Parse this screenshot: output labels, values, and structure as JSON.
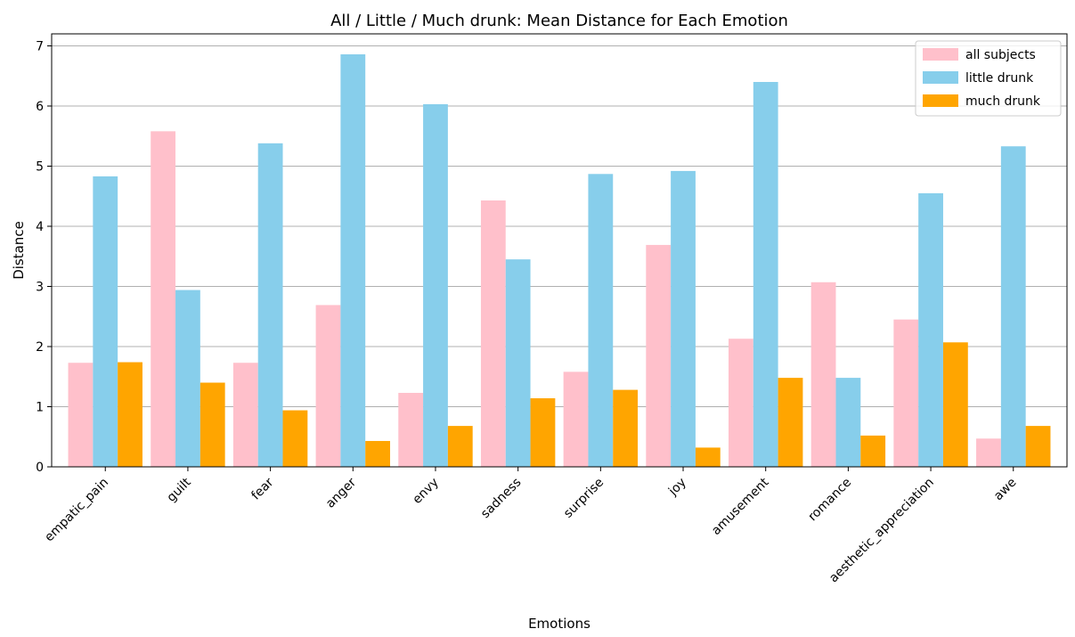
{
  "chart_data": {
    "type": "bar",
    "title": "All / Little / Much drunk: Mean Distance for Each Emotion",
    "xlabel": "Emotions",
    "ylabel": "Distance",
    "ylim": [
      0,
      7.2
    ],
    "yticks": [
      0,
      1,
      2,
      3,
      4,
      5,
      6,
      7
    ],
    "grid": "y",
    "legend_position": "top-right",
    "categories": [
      "empatic_pain",
      "guilt",
      "fear",
      "anger",
      "envy",
      "sadness",
      "surprise",
      "joy",
      "amusement",
      "romance",
      "aesthetic_appreciation",
      "awe"
    ],
    "series": [
      {
        "name": "all subjects",
        "color": "#ffc0cb",
        "values": [
          1.73,
          5.58,
          1.73,
          2.69,
          1.23,
          4.43,
          1.58,
          3.69,
          2.13,
          3.07,
          2.45,
          0.47
        ]
      },
      {
        "name": "little drunk",
        "color": "#87ceeb",
        "values": [
          4.83,
          2.94,
          5.38,
          6.86,
          6.03,
          3.45,
          4.87,
          4.92,
          6.4,
          1.48,
          4.55,
          5.33
        ]
      },
      {
        "name": "much drunk",
        "color": "#ffa500",
        "values": [
          1.74,
          1.4,
          0.94,
          0.43,
          0.68,
          1.14,
          1.28,
          0.32,
          1.48,
          0.52,
          2.07,
          0.68
        ]
      }
    ]
  }
}
